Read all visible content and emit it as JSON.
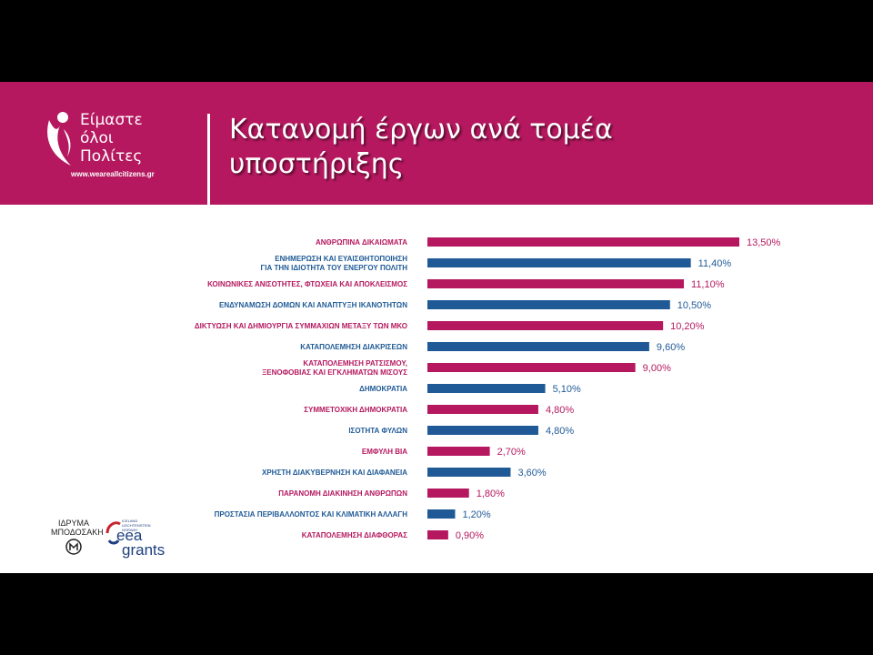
{
  "header": {
    "title_line1": "Κατανομή έργων ανά τομέα",
    "title_line2": "υποστήριξης",
    "logo_line1": "Είμαστε",
    "logo_line2": "όλοι",
    "logo_line3": "Πολίτες",
    "logo_url": "www.weareallcitizens.gr"
  },
  "footer": {
    "idryma_line1": "ΙΔΡΥΜΑ",
    "idryma_line2": "ΜΠΟΔΟΣΑΚΗ",
    "eea_small": "ICELAND LIECHTENSTEIN NORWAY",
    "eea_line1": "eea",
    "eea_line2": "grants"
  },
  "colors": {
    "magenta": "#b5185f",
    "blue": "#1f5a96",
    "text_magenta": "#b5185f",
    "text_blue": "#1f5a96"
  },
  "chart_data": {
    "type": "bar",
    "orientation": "horizontal",
    "categories": [
      [
        "ΑΝΘΡΩΠΙΝΑ ΔΙΚΑΙΩΜΑΤΑ"
      ],
      [
        "ΕΝΗΜΕΡΩΣΗ ΚΑΙ ΕΥΑΙΣΘΗΤΟΠΟΙΗΣΗ",
        "ΓΙΑ ΤΗΝ ΙΔΙΟΤΗΤΑ ΤΟΥ ΕΝΕΡΓΟΥ ΠΟΛΙΤΗ"
      ],
      [
        "ΚΟΙΝΩΝΙΚΕΣ ΑΝΙΣΟΤΗΤΕΣ, ΦΤΩΧΕΙΑ ΚΑΙ ΑΠΟΚΛΕΙΣΜΟΣ"
      ],
      [
        "ΕΝΔΥΝΑΜΩΣΗ ΔΟΜΩΝ ΚΑΙ ΑΝΑΠΤΥΞΗ ΙΚΑΝΟΤΗΤΩΝ"
      ],
      [
        "ΔΙΚΤΥΩΣΗ ΚΑΙ ΔΗΜΙΟΥΡΓΙΑ ΣΥΜΜΑΧΙΩΝ ΜΕΤΑΞΥ ΤΩΝ ΜΚΟ"
      ],
      [
        "ΚΑΤΑΠΟΛΕΜΗΣΗ ΔΙΑΚΡΙΣΕΩΝ"
      ],
      [
        "ΚΑΤΑΠΟΛΕΜΗΣΗ ΡΑΤΣΙΣΜΟΥ,",
        "ΞΕΝΟΦΟΒΙΑΣ ΚΑΙ ΕΓΚΛΗΜΑΤΩΝ ΜΙΣΟΥΣ"
      ],
      [
        "ΔΗΜΟΚΡΑΤΙΑ"
      ],
      [
        "ΣΥΜΜΕΤΟΧΙΚΗ ΔΗΜΟΚΡΑΤΙΑ"
      ],
      [
        "ΙΣΟΤΗΤΑ ΦΥΛΩΝ"
      ],
      [
        "ΕΜΦΥΛΗ ΒΙΑ"
      ],
      [
        "ΧΡΗΣΤΗ ΔΙΑΚΥΒΕΡΝΗΣΗ ΚΑΙ ΔΙΑΦΑΝΕΙΑ"
      ],
      [
        "ΠΑΡΑΝΟΜΗ ΔΙΑΚΙΝΗΣΗ ΑΝΘΡΩΠΩΝ"
      ],
      [
        "ΠΡΟΣΤΑΣΙΑ ΠΕΡΙΒΑΛΛΟΝΤΟΣ ΚΑΙ ΚΛΙΜΑΤΙΚΗ ΑΛΛΑΓΗ"
      ],
      [
        "ΚΑΤΑΠΟΛΕΜΗΣΗ ΔΙΑΦΘΟΡΑΣ"
      ]
    ],
    "values": [
      13.5,
      11.4,
      11.1,
      10.5,
      10.2,
      9.6,
      9.0,
      5.1,
      4.8,
      4.8,
      2.7,
      3.6,
      1.8,
      1.2,
      0.9
    ],
    "value_labels": [
      "13,50%",
      "11,40%",
      "11,10%",
      "10,50%",
      "10,20%",
      "9,60%",
      "9,00%",
      "5,10%",
      "4,80%",
      "4,80%",
      "2,70%",
      "3,60%",
      "1,80%",
      "1,20%",
      "0,90%"
    ],
    "bar_colors": [
      "magenta",
      "blue",
      "magenta",
      "blue",
      "magenta",
      "blue",
      "magenta",
      "blue",
      "magenta",
      "blue",
      "magenta",
      "blue",
      "magenta",
      "blue",
      "magenta"
    ],
    "xlim": [
      0,
      13.5
    ],
    "grid": false,
    "legend": "none"
  }
}
